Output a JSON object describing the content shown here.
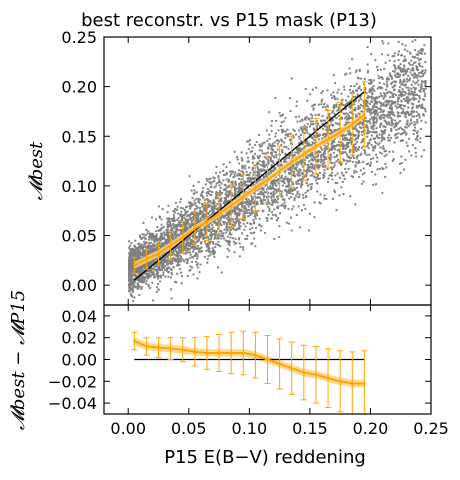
{
  "colors": {
    "scatter": "#808080",
    "mean_line": "#ffa500",
    "error_bar": "#ffa500",
    "band": "#ffd27a",
    "reference_line": "#000000",
    "frame": "#000000"
  },
  "chart_data": [
    {
      "type": "scatter",
      "title": "best reconstr. vs P15 mask (P13)",
      "xlabel": "P15 E(B−V) reddening",
      "ylabel": "𝓜best",
      "xlim": [
        -0.02,
        0.25
      ],
      "ylim": [
        -0.02,
        0.25
      ],
      "xticks": [
        0.0,
        0.05,
        0.1,
        0.15,
        0.2,
        0.25
      ],
      "yticks": [
        0.0,
        0.05,
        0.1,
        0.15,
        0.2,
        0.25
      ],
      "ytick_labels": [
        "0.00",
        "0.05",
        "0.10",
        "0.15",
        "0.20",
        "0.25"
      ],
      "reference_line": {
        "x": [
          0.005,
          0.195
        ],
        "y": [
          0.005,
          0.195
        ]
      },
      "binned_mean": {
        "x": [
          0.005,
          0.015,
          0.025,
          0.035,
          0.045,
          0.055,
          0.065,
          0.075,
          0.085,
          0.095,
          0.105,
          0.115,
          0.125,
          0.135,
          0.145,
          0.155,
          0.165,
          0.175,
          0.185,
          0.195
        ],
        "y": [
          0.02,
          0.026,
          0.032,
          0.04,
          0.048,
          0.057,
          0.064,
          0.072,
          0.08,
          0.089,
          0.098,
          0.106,
          0.115,
          0.124,
          0.132,
          0.14,
          0.147,
          0.154,
          0.162,
          0.172
        ],
        "yerr": [
          0.008,
          0.01,
          0.012,
          0.014,
          0.016,
          0.017,
          0.019,
          0.02,
          0.021,
          0.022,
          0.023,
          0.024,
          0.025,
          0.026,
          0.027,
          0.028,
          0.029,
          0.03,
          0.031,
          0.033
        ]
      },
      "scatter_band": {
        "x": [
          0.0,
          0.02,
          0.04,
          0.06,
          0.08,
          0.1,
          0.12,
          0.14,
          0.16,
          0.18,
          0.2,
          0.22,
          0.24
        ],
        "center": [
          0.015,
          0.03,
          0.045,
          0.06,
          0.075,
          0.095,
          0.11,
          0.128,
          0.142,
          0.155,
          0.17,
          0.185,
          0.2
        ],
        "spread": [
          0.02,
          0.026,
          0.03,
          0.034,
          0.036,
          0.038,
          0.04,
          0.042,
          0.044,
          0.046,
          0.048,
          0.05,
          0.055
        ]
      }
    },
    {
      "type": "line",
      "title": "",
      "xlabel": "P15 E(B−V) reddening",
      "ylabel": "𝓜best − 𝓜P15",
      "xlim": [
        -0.02,
        0.25
      ],
      "ylim": [
        -0.05,
        0.05
      ],
      "xticks": [
        0.0,
        0.05,
        0.1,
        0.15,
        0.2,
        0.25
      ],
      "xtick_labels": [
        "0.00",
        "0.05",
        "0.10",
        "0.15",
        "0.20",
        "0.25"
      ],
      "yticks": [
        -0.04,
        -0.02,
        0.0,
        0.02,
        0.04
      ],
      "ytick_labels": [
        "−0.04",
        "−0.02",
        "0.00",
        "0.02",
        "0.04"
      ],
      "reference_line": {
        "x": [
          0.005,
          0.195
        ],
        "y": [
          0.0,
          0.0
        ]
      },
      "binned_mean": {
        "x": [
          0.005,
          0.015,
          0.025,
          0.035,
          0.045,
          0.055,
          0.065,
          0.075,
          0.085,
          0.095,
          0.105,
          0.115,
          0.125,
          0.135,
          0.145,
          0.155,
          0.165,
          0.175,
          0.185,
          0.195
        ],
        "y": [
          0.017,
          0.012,
          0.011,
          0.01,
          0.009,
          0.007,
          0.006,
          0.006,
          0.006,
          0.006,
          0.004,
          0.0,
          -0.004,
          -0.008,
          -0.012,
          -0.014,
          -0.017,
          -0.02,
          -0.022,
          -0.022
        ],
        "yerr": [
          0.008,
          0.008,
          0.009,
          0.01,
          0.011,
          0.013,
          0.015,
          0.017,
          0.019,
          0.02,
          0.021,
          0.022,
          0.023,
          0.024,
          0.025,
          0.026,
          0.027,
          0.028,
          0.029,
          0.03
        ]
      }
    }
  ]
}
